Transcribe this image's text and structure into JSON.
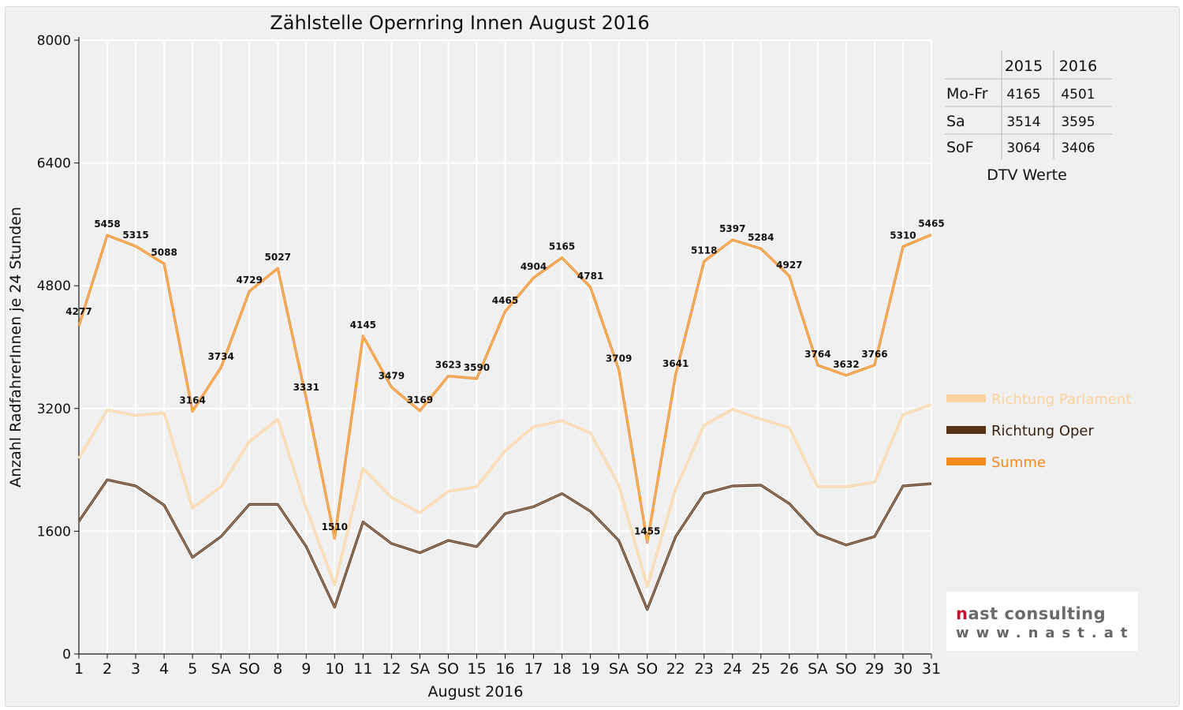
{
  "chart_data": {
    "type": "line",
    "title": "Zählstelle Opernring Innen August 2016",
    "xlabel": "August 2016",
    "ylabel": "Anzahl RadfahrerInnen je 24 Stunden",
    "ylim": [
      0,
      8000
    ],
    "yticks": [
      "0",
      "1600",
      "3200",
      "4800",
      "6400",
      "8000"
    ],
    "grid": true,
    "legend_position": "right",
    "categories": [
      "1",
      "2",
      "3",
      "4",
      "5",
      "SA",
      "SO",
      "8",
      "9",
      "10",
      "11",
      "12",
      "SA",
      "SO",
      "15",
      "16",
      "17",
      "18",
      "19",
      "SA",
      "SO",
      "22",
      "23",
      "24",
      "25",
      "26",
      "SA",
      "SO",
      "29",
      "30",
      "31"
    ],
    "red_categories": [
      6,
      13,
      14,
      20,
      27
    ],
    "series": [
      {
        "name": "Richtung Parlament",
        "color": "#fbd29e",
        "values": [
          2550,
          3180,
          3110,
          3140,
          1900,
          2180,
          2770,
          3060,
          1900,
          900,
          2420,
          2040,
          1840,
          2120,
          2180,
          2650,
          2960,
          3040,
          2880,
          2200,
          880,
          2150,
          2980,
          3190,
          3060,
          2950,
          2180,
          2180,
          2240,
          3120,
          3250
        ]
      },
      {
        "name": "Richtung Oper",
        "color": "#5a3316",
        "values": [
          1730,
          2270,
          2190,
          1940,
          1260,
          1530,
          1950,
          1950,
          1400,
          610,
          1720,
          1440,
          1320,
          1480,
          1400,
          1830,
          1920,
          2090,
          1860,
          1480,
          580,
          1530,
          2090,
          2190,
          2200,
          1960,
          1560,
          1420,
          1530,
          2190,
          2220
        ]
      },
      {
        "name": "Summe",
        "color": "#f28a1c",
        "values": [
          4277,
          5458,
          5315,
          5088,
          3164,
          3734,
          4729,
          5027,
          3331,
          1510,
          4145,
          3479,
          3169,
          3623,
          3590,
          4465,
          4904,
          5165,
          4781,
          3709,
          1455,
          3641,
          5118,
          5397,
          5284,
          4927,
          3764,
          3632,
          3766,
          5310,
          5465
        ]
      }
    ],
    "data_labels": [
      "4277",
      "5458",
      "5315",
      "5088",
      "3164",
      "3734",
      "4729",
      "5027",
      "3331",
      "1510",
      "4145",
      "3479",
      "3169",
      "3623",
      "3590",
      "4465",
      "4904",
      "5165",
      "4781",
      "3709",
      "1455",
      "3641",
      "5118",
      "5397",
      "5284",
      "4927",
      "3764",
      "3632",
      "3766",
      "5310",
      "5465"
    ]
  },
  "dtv_table": {
    "headers": [
      "",
      "2015",
      "2016"
    ],
    "rows": [
      {
        "label": "Mo-Fr",
        "v2015": "4165",
        "v2016": "4501"
      },
      {
        "label": "Sa",
        "v2015": "3514",
        "v2016": "3595"
      },
      {
        "label": "SoF",
        "v2015": "3064",
        "v2016": "3406"
      }
    ],
    "caption": "DTV Werte"
  },
  "logo": {
    "main": "nast consulting",
    "sub": "www.nast.at"
  },
  "colors": {
    "weekend_label": "#e3000f",
    "grid": "#ffffff",
    "background": "#f0f0f0"
  }
}
